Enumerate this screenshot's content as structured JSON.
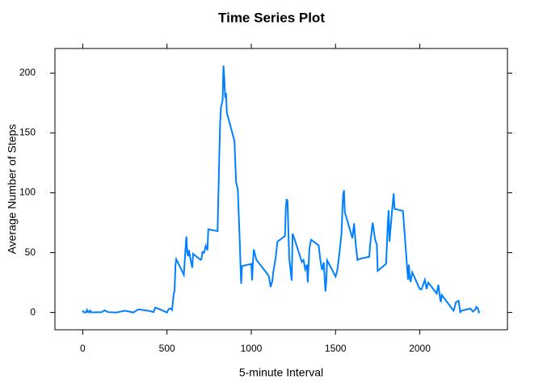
{
  "chart_data": {
    "type": "line",
    "title": "Time Series Plot",
    "x_label": "5-minute Interval",
    "y_label": "Average Number of Steps",
    "x": [
      0,
      5,
      10,
      15,
      20,
      25,
      30,
      35,
      40,
      45,
      50,
      55,
      100,
      110,
      130,
      150,
      200,
      250,
      300,
      330,
      400,
      420,
      430,
      440,
      450,
      500,
      510,
      520,
      530,
      540,
      545,
      550,
      555,
      600,
      610,
      615,
      620,
      625,
      630,
      640,
      650,
      655,
      700,
      705,
      710,
      720,
      730,
      740,
      745,
      800,
      810,
      815,
      820,
      830,
      835,
      840,
      845,
      850,
      855,
      900,
      910,
      920,
      930,
      940,
      945,
      1000,
      1005,
      1010,
      1015,
      1030,
      1100,
      1105,
      1115,
      1125,
      1130,
      1145,
      1155,
      1200,
      1205,
      1210,
      1215,
      1225,
      1240,
      1245,
      1255,
      1300,
      1310,
      1320,
      1330,
      1335,
      1345,
      1355,
      1400,
      1410,
      1420,
      1430,
      1440,
      1445,
      1450,
      1500,
      1510,
      1520,
      1535,
      1540,
      1545,
      1550,
      1555,
      1600,
      1610,
      1620,
      1630,
      1640,
      1700,
      1705,
      1720,
      1735,
      1745,
      1750,
      1800,
      1810,
      1815,
      1820,
      1825,
      1835,
      1845,
      1850,
      1900,
      1930,
      1935,
      1940,
      1945,
      1955,
      2000,
      2010,
      2030,
      2040,
      2050,
      2100,
      2110,
      2120,
      2125,
      2130,
      2200,
      2205,
      2215,
      2230,
      2240,
      2250,
      2300,
      2315,
      2330,
      2335,
      2345,
      2350,
      2355
    ],
    "series": [
      {
        "color": "#0080ff",
        "values": [
          1.7,
          0.3,
          0.1,
          0.2,
          0.1,
          2.1,
          0.5,
          0.9,
          0,
          1.5,
          0.3,
          0.1,
          0.3,
          0.1,
          1.8,
          0.3,
          0,
          1.5,
          0,
          2.6,
          1.2,
          0.3,
          4.1,
          3.5,
          3.1,
          0,
          3,
          3.3,
          2.1,
          16,
          18,
          39.5,
          44.5,
          31.5,
          53.8,
          63.5,
          50,
          47,
          52.2,
          44,
          37.4,
          49,
          44,
          44.8,
          50.5,
          49.9,
          55.7,
          52,
          69.5,
          68,
          129.4,
          157.5,
          171.2,
          177.3,
          206.2,
          195.9,
          179.6,
          183.4,
          167,
          143.5,
          109,
          103,
          66,
          24,
          38.8,
          40.6,
          26.9,
          42.4,
          52.7,
          44,
          31.4,
          29.7,
          21.3,
          26.5,
          33.3,
          46,
          59.2,
          63.9,
          87.7,
          94.8,
          92.8,
          45.5,
          26.6,
          65.9,
          62,
          42.3,
          43.8,
          36.1,
          40,
          25.1,
          53.8,
          60.8,
          56,
          43.7,
          35.5,
          41.8,
          17.6,
          26,
          43.6,
          30,
          35,
          45.9,
          65.3,
          82.9,
          98.7,
          102.1,
          83.9,
          62.1,
          74.5,
          56.4,
          43.9,
          44.7,
          46.6,
          56.3,
          75,
          60.8,
          56.5,
          34.8,
          40.7,
          74.7,
          85.3,
          59.3,
          67.8,
          84.5,
          99.5,
          86.6,
          84.9,
          27.4,
          40,
          30.2,
          25.5,
          33.5,
          19.6,
          19.3,
          27.3,
          19.6,
          25,
          15.9,
          23.1,
          12,
          8.7,
          14.7,
          1.5,
          3.7,
          8.8,
          9.8,
          0.3,
          1.6,
          3.3,
          0.8,
          2.6,
          4.7,
          3.3,
          0.2,
          1.1
        ]
      }
    ],
    "xlim": [
      -164.85,
      2519.85
    ],
    "ylim": [
      -14.43,
      220.6
    ],
    "xticks": [
      0,
      500,
      1000,
      1500,
      2000
    ],
    "yticks": [
      0,
      50,
      100,
      150,
      200
    ]
  }
}
